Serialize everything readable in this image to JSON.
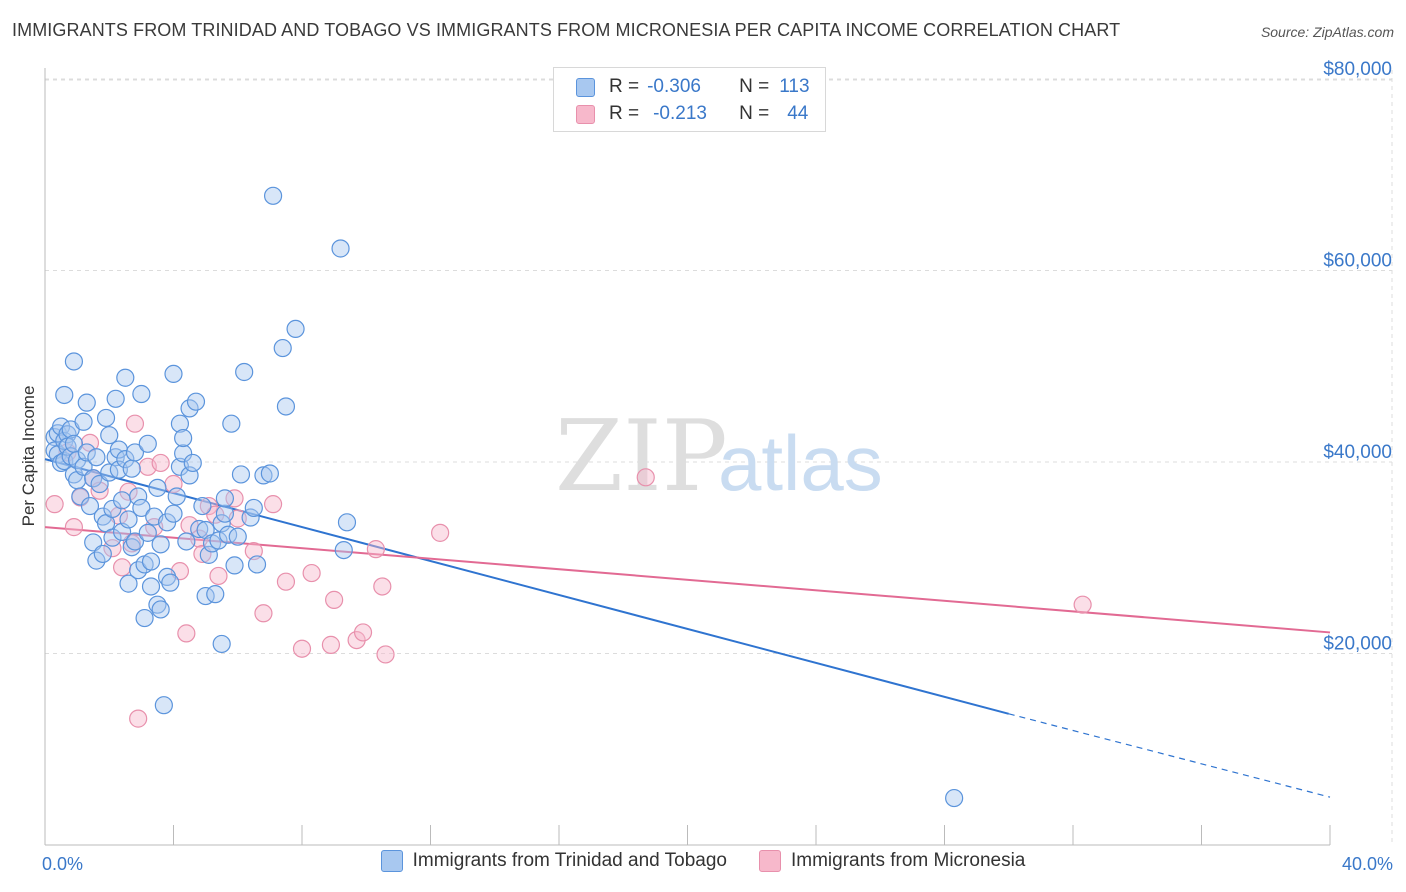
{
  "title": "IMMIGRANTS FROM TRINIDAD AND TOBAGO VS IMMIGRANTS FROM MICRONESIA PER CAPITA INCOME CORRELATION CHART",
  "source": "Source: ZipAtlas.com",
  "watermark": {
    "zip": "ZIP",
    "atlas": "atlas"
  },
  "legend": {
    "rows": [
      {
        "r_label": "R =",
        "r_value": "-0.306",
        "n_label": "N =",
        "n_value": "113"
      },
      {
        "r_label": "R =",
        "r_value": "-0.213",
        "n_label": "N =",
        "n_value": "44"
      }
    ]
  },
  "colors": {
    "blue_fill": "#a8c8f0",
    "blue_stroke": "#5b94dc",
    "blue_line": "#2f74d0",
    "pink_fill": "#f7b8cb",
    "pink_stroke": "#e890ac",
    "pink_line": "#e26a93",
    "tick_label": "#3a78c9",
    "grid": "#dcdcdc"
  },
  "chart_data": {
    "type": "scatter",
    "xlabel": "",
    "ylabel": "Per Capita Income",
    "xlim": [
      0,
      40
    ],
    "ylim": [
      0,
      80000
    ],
    "x_tick_labels": [
      "0.0%",
      "40.0%"
    ],
    "y_ticks": [
      20000,
      40000,
      60000,
      80000
    ],
    "y_tick_labels": [
      "$20,000",
      "$40,000",
      "$60,000",
      "$80,000"
    ],
    "grid": "horizontal dashed",
    "series": [
      {
        "name": "Immigrants from Trinidad and Tobago",
        "color": "blue",
        "trend": {
          "x0": 0,
          "y0": 40300,
          "x1": 30,
          "y1": 13700,
          "dashed_to_x": 40,
          "dashed_to_y": 5000
        },
        "points": [
          [
            0.3,
            42600
          ],
          [
            0.3,
            41200
          ],
          [
            0.4,
            43000
          ],
          [
            0.4,
            40800
          ],
          [
            0.5,
            39900
          ],
          [
            0.5,
            43700
          ],
          [
            0.6,
            42200
          ],
          [
            0.6,
            40100
          ],
          [
            0.7,
            42900
          ],
          [
            0.7,
            41600
          ],
          [
            0.8,
            43400
          ],
          [
            0.8,
            40600
          ],
          [
            0.9,
            38700
          ],
          [
            0.9,
            41900
          ],
          [
            1.0,
            40200
          ],
          [
            1.0,
            38100
          ],
          [
            1.1,
            36400
          ],
          [
            1.2,
            44200
          ],
          [
            1.2,
            39500
          ],
          [
            1.3,
            41000
          ],
          [
            1.3,
            46200
          ],
          [
            1.4,
            35400
          ],
          [
            1.5,
            31600
          ],
          [
            1.5,
            38300
          ],
          [
            1.6,
            40500
          ],
          [
            1.6,
            29700
          ],
          [
            1.7,
            37700
          ],
          [
            1.8,
            34300
          ],
          [
            1.8,
            30400
          ],
          [
            1.9,
            44600
          ],
          [
            1.9,
            33600
          ],
          [
            2.0,
            42800
          ],
          [
            2.0,
            38900
          ],
          [
            2.1,
            35100
          ],
          [
            2.1,
            32100
          ],
          [
            2.2,
            46600
          ],
          [
            2.2,
            40500
          ],
          [
            2.3,
            39200
          ],
          [
            2.3,
            41300
          ],
          [
            2.4,
            36000
          ],
          [
            2.4,
            32700
          ],
          [
            2.5,
            48800
          ],
          [
            2.5,
            40300
          ],
          [
            2.6,
            34000
          ],
          [
            2.6,
            27300
          ],
          [
            2.7,
            31100
          ],
          [
            2.7,
            39300
          ],
          [
            2.8,
            41000
          ],
          [
            2.8,
            31700
          ],
          [
            2.9,
            36400
          ],
          [
            2.9,
            28700
          ],
          [
            3.0,
            47100
          ],
          [
            3.0,
            35200
          ],
          [
            3.1,
            29300
          ],
          [
            3.1,
            23700
          ],
          [
            3.2,
            32600
          ],
          [
            3.2,
            41900
          ],
          [
            3.3,
            27000
          ],
          [
            3.3,
            29600
          ],
          [
            3.4,
            34300
          ],
          [
            3.5,
            25100
          ],
          [
            3.5,
            37300
          ],
          [
            3.6,
            24600
          ],
          [
            3.6,
            31400
          ],
          [
            3.7,
            14600
          ],
          [
            3.8,
            33700
          ],
          [
            3.8,
            28000
          ],
          [
            3.9,
            27400
          ],
          [
            4.0,
            49200
          ],
          [
            4.0,
            34600
          ],
          [
            4.1,
            36400
          ],
          [
            4.2,
            39500
          ],
          [
            4.2,
            44000
          ],
          [
            4.3,
            40900
          ],
          [
            4.3,
            42500
          ],
          [
            4.4,
            31700
          ],
          [
            4.5,
            38600
          ],
          [
            4.5,
            45600
          ],
          [
            4.6,
            39900
          ],
          [
            4.7,
            46300
          ],
          [
            4.8,
            33000
          ],
          [
            4.9,
            35400
          ],
          [
            5.0,
            32900
          ],
          [
            5.0,
            26000
          ],
          [
            5.1,
            30300
          ],
          [
            5.2,
            31500
          ],
          [
            5.3,
            26200
          ],
          [
            5.4,
            31800
          ],
          [
            5.5,
            21000
          ],
          [
            5.5,
            33600
          ],
          [
            5.6,
            34600
          ],
          [
            5.6,
            36200
          ],
          [
            5.7,
            32400
          ],
          [
            5.8,
            44000
          ],
          [
            5.9,
            29200
          ],
          [
            6.0,
            32200
          ],
          [
            6.1,
            38700
          ],
          [
            6.2,
            49400
          ],
          [
            6.4,
            34200
          ],
          [
            6.5,
            35200
          ],
          [
            6.6,
            29300
          ],
          [
            6.8,
            38600
          ],
          [
            7.0,
            38800
          ],
          [
            7.1,
            67800
          ],
          [
            7.4,
            51900
          ],
          [
            7.5,
            45800
          ],
          [
            7.8,
            53900
          ],
          [
            9.2,
            62300
          ],
          [
            9.3,
            30800
          ],
          [
            9.4,
            33700
          ],
          [
            28.3,
            4900
          ],
          [
            0.9,
            50500
          ],
          [
            0.6,
            47000
          ]
        ]
      },
      {
        "name": "Immigrants from Micronesia",
        "color": "pink",
        "trend": {
          "x0": 0,
          "y0": 33200,
          "x1": 40,
          "y1": 22200
        },
        "points": [
          [
            0.3,
            35600
          ],
          [
            0.7,
            41000
          ],
          [
            0.9,
            33200
          ],
          [
            1.1,
            36300
          ],
          [
            1.4,
            42000
          ],
          [
            1.5,
            38300
          ],
          [
            1.7,
            37000
          ],
          [
            2.1,
            31000
          ],
          [
            2.3,
            34400
          ],
          [
            2.4,
            29000
          ],
          [
            2.6,
            36900
          ],
          [
            2.7,
            31500
          ],
          [
            2.8,
            44000
          ],
          [
            2.9,
            13200
          ],
          [
            3.2,
            39500
          ],
          [
            3.4,
            33200
          ],
          [
            3.6,
            39900
          ],
          [
            4.0,
            37700
          ],
          [
            4.2,
            28600
          ],
          [
            4.4,
            22100
          ],
          [
            4.5,
            33400
          ],
          [
            4.8,
            32000
          ],
          [
            4.9,
            30400
          ],
          [
            5.1,
            35400
          ],
          [
            5.3,
            34500
          ],
          [
            5.4,
            28100
          ],
          [
            5.9,
            36200
          ],
          [
            6.0,
            34100
          ],
          [
            6.5,
            30700
          ],
          [
            6.8,
            24200
          ],
          [
            7.1,
            35600
          ],
          [
            7.5,
            27500
          ],
          [
            8.0,
            20500
          ],
          [
            8.3,
            28400
          ],
          [
            8.9,
            20900
          ],
          [
            9.0,
            25600
          ],
          [
            9.7,
            21400
          ],
          [
            9.9,
            22200
          ],
          [
            10.3,
            30900
          ],
          [
            10.5,
            27000
          ],
          [
            10.6,
            19900
          ],
          [
            12.3,
            32600
          ],
          [
            18.7,
            38400
          ],
          [
            32.3,
            25100
          ]
        ]
      }
    ]
  },
  "bottom_legend": [
    "Immigrants from Trinidad and Tobago",
    "Immigrants from Micronesia"
  ]
}
